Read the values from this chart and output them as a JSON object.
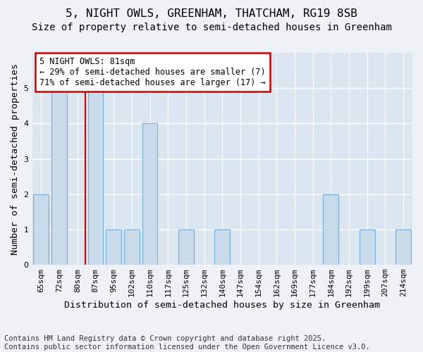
{
  "title1": "5, NIGHT OWLS, GREENHAM, THATCHAM, RG19 8SB",
  "title2": "Size of property relative to semi-detached houses in Greenham",
  "xlabel": "Distribution of semi-detached houses by size in Greenham",
  "ylabel": "Number of semi-detached properties",
  "categories": [
    "65sqm",
    "72sqm",
    "80sqm",
    "87sqm",
    "95sqm",
    "102sqm",
    "110sqm",
    "117sqm",
    "125sqm",
    "132sqm",
    "140sqm",
    "147sqm",
    "154sqm",
    "162sqm",
    "169sqm",
    "177sqm",
    "184sqm",
    "192sqm",
    "199sqm",
    "207sqm",
    "214sqm"
  ],
  "values": [
    2,
    5,
    0,
    5,
    1,
    1,
    4,
    0,
    1,
    0,
    1,
    0,
    0,
    0,
    0,
    0,
    2,
    0,
    1,
    0,
    1
  ],
  "bar_color": "#c9daea",
  "bar_edge_color": "#7aadd4",
  "highlight_index": 2,
  "highlight_color": "#cc0000",
  "annotation_line1": "5 NIGHT OWLS: 81sqm",
  "annotation_line2": "← 29% of semi-detached houses are smaller (7)",
  "annotation_line3": "71% of semi-detached houses are larger (17) →",
  "annotation_box_color": "#ffffff",
  "annotation_box_edge": "#cc0000",
  "ylim": [
    0,
    6
  ],
  "yticks": [
    0,
    1,
    2,
    3,
    4,
    5
  ],
  "footer1": "Contains HM Land Registry data © Crown copyright and database right 2025.",
  "footer2": "Contains public sector information licensed under the Open Government Licence v3.0.",
  "bg_color": "#eef2f7",
  "plot_bg_color": "#dce6f0",
  "grid_color": "#ffffff",
  "title1_fontsize": 11.5,
  "title2_fontsize": 10,
  "tick_fontsize": 8,
  "label_fontsize": 9.5,
  "footer_fontsize": 7.5,
  "annot_fontsize": 8.5
}
